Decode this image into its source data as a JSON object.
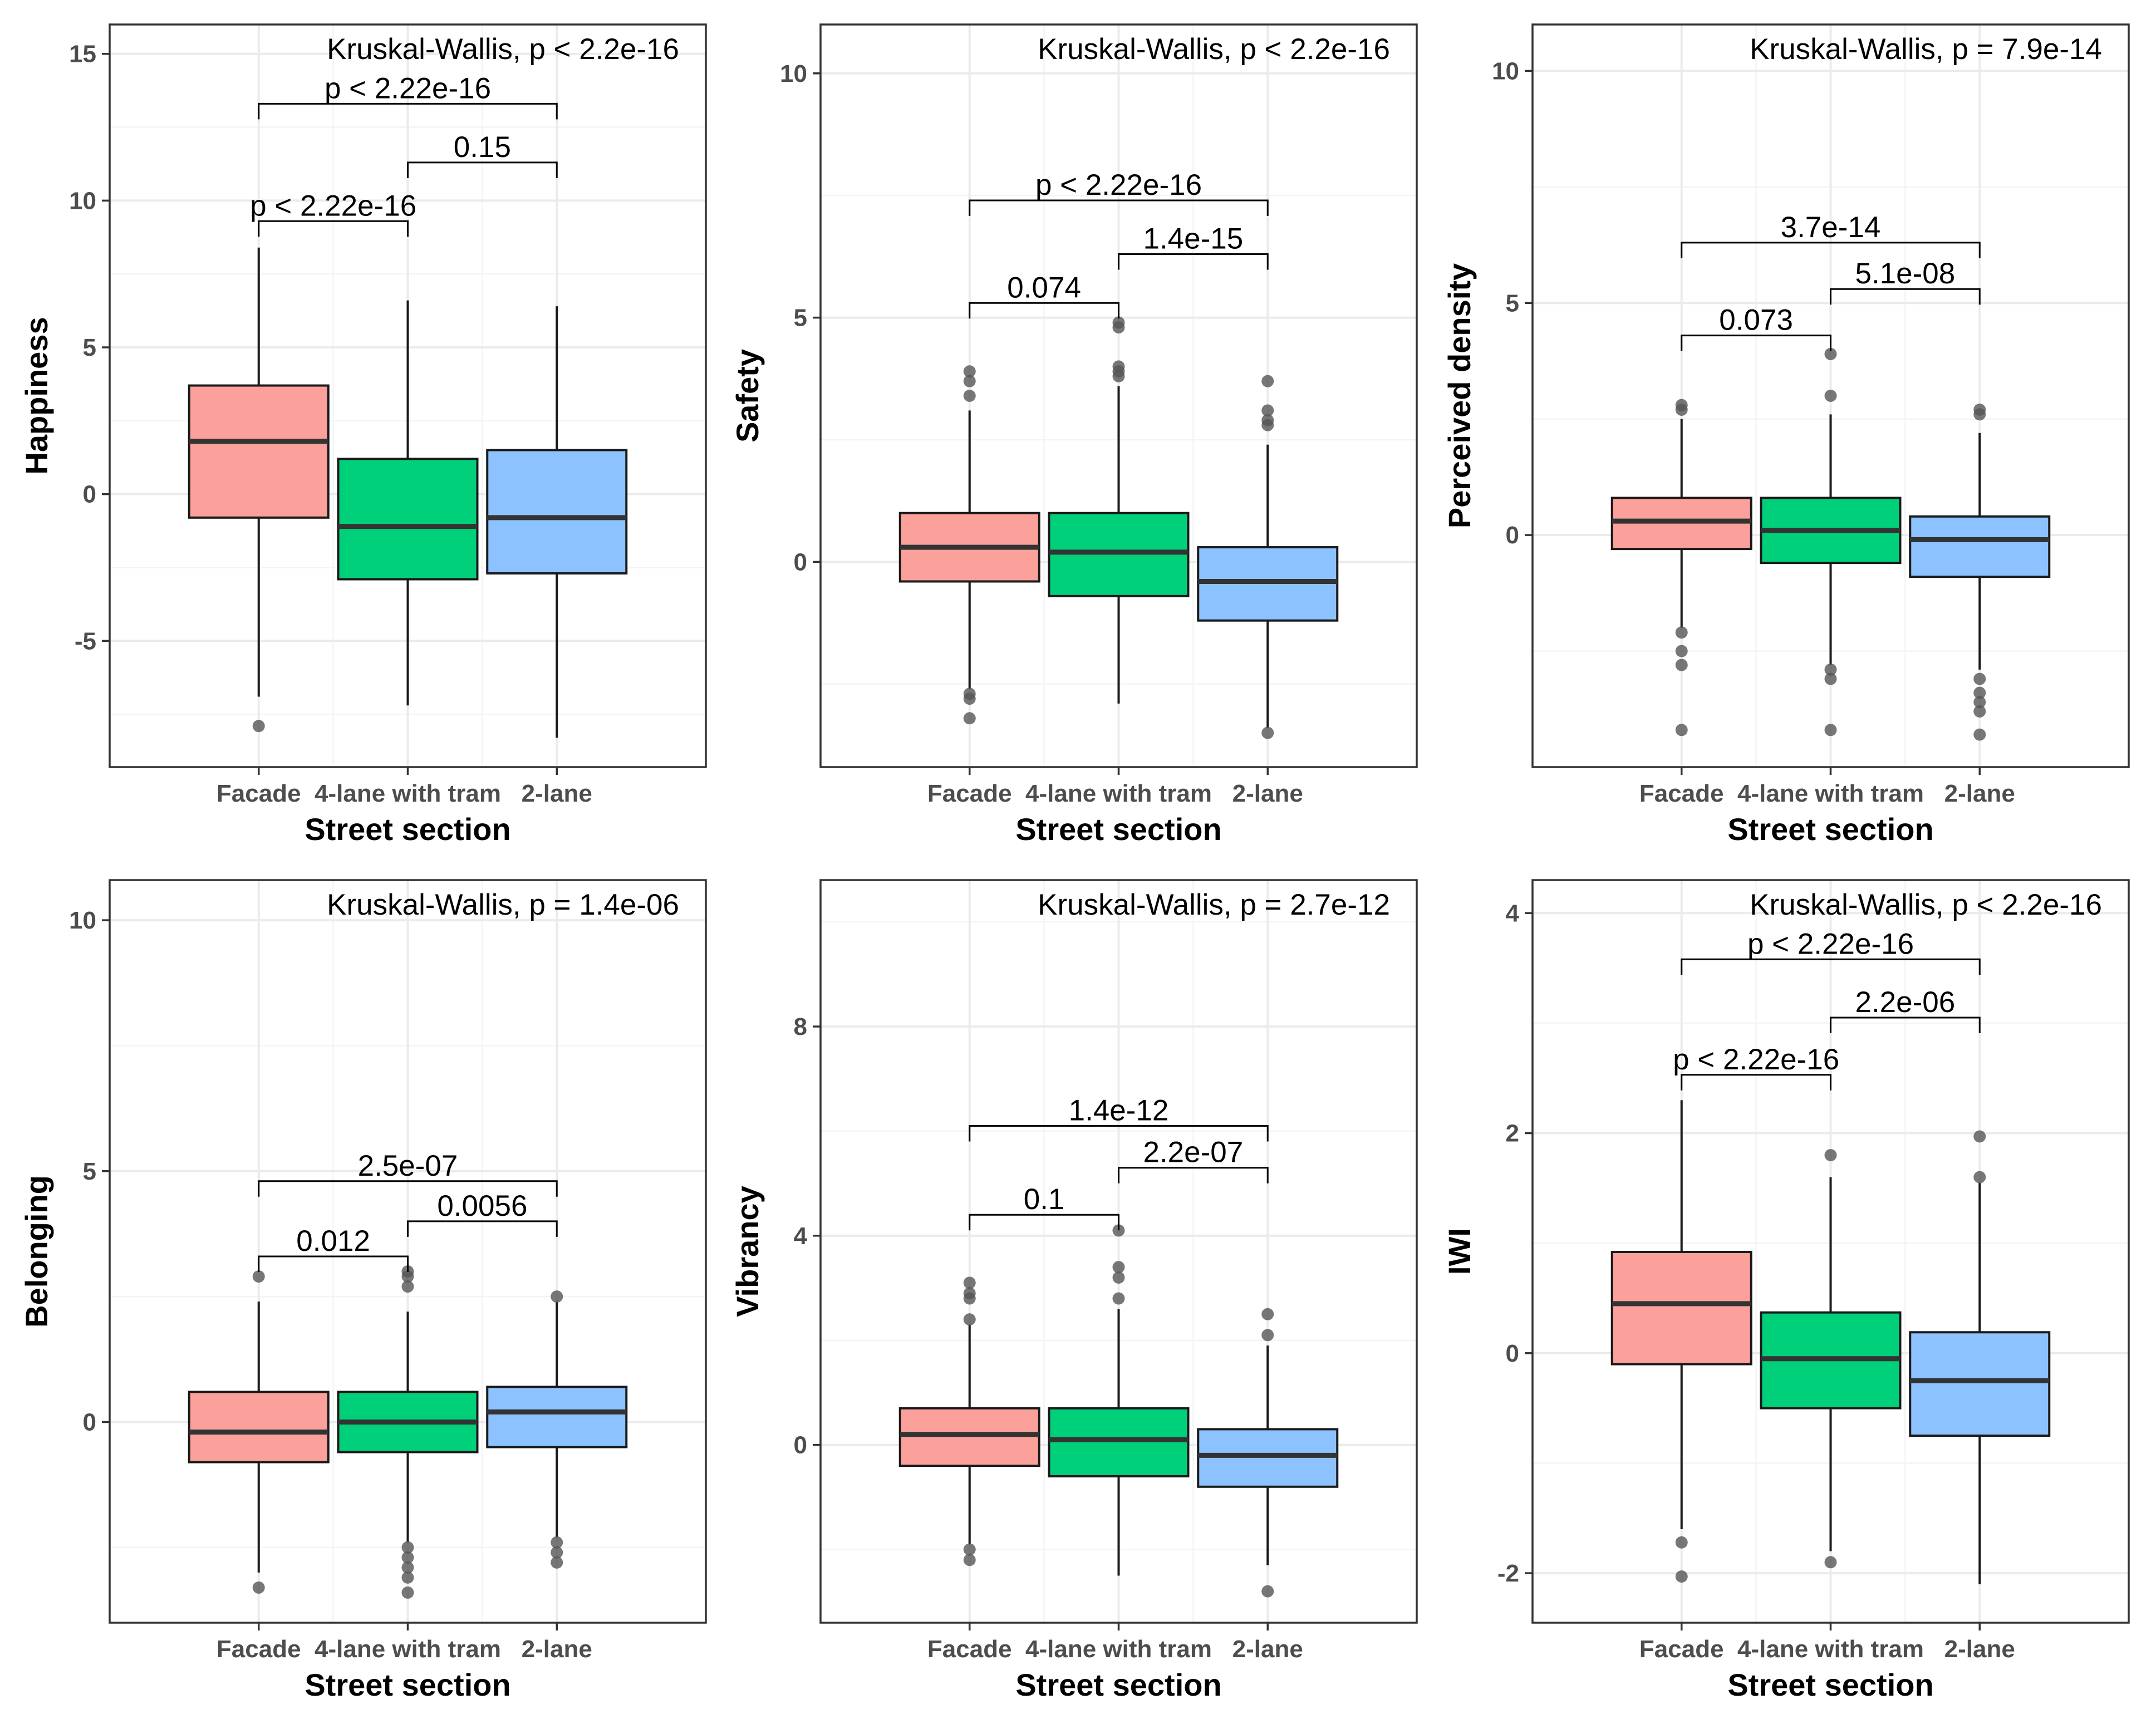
{
  "figure": {
    "groups": [
      "Facade",
      "4-lane with tram",
      "2-lane"
    ],
    "colors": {
      "Facade": "#fba09a",
      "4-lane with tram": "#00d07a",
      "2-lane": "#8cc2ff"
    },
    "xlabel": "Street section"
  },
  "chart_data": [
    {
      "type": "box",
      "ylabel": "Happiness",
      "kruskal_label": "Kruskal-Wallis, p < 2.2e-16",
      "ylim": [
        -9.3,
        16.0
      ],
      "yticks": [
        -5,
        0,
        5,
        10,
        15
      ],
      "ytick_labels": [
        "-5",
        "0",
        "5",
        "10",
        "15"
      ],
      "boxes": [
        {
          "group": "Facade",
          "q1": -0.8,
          "median": 1.8,
          "q3": 3.7,
          "whisker_low": -6.9,
          "whisker_high": 8.4,
          "outliers": [
            -7.9
          ]
        },
        {
          "group": "4-lane with tram",
          "q1": -2.9,
          "median": -1.1,
          "q3": 1.2,
          "whisker_low": -7.2,
          "whisker_high": 6.6,
          "outliers": []
        },
        {
          "group": "2-lane",
          "q1": -2.7,
          "median": -0.8,
          "q3": 1.5,
          "whisker_low": -8.3,
          "whisker_high": 6.4,
          "outliers": []
        }
      ],
      "comparisons": [
        {
          "groups": [
            "Facade",
            "2-lane"
          ],
          "y": 13.3,
          "label": "p < 2.22e-16"
        },
        {
          "groups": [
            "4-lane with tram",
            "2-lane"
          ],
          "y": 11.3,
          "label": "0.15"
        },
        {
          "groups": [
            "Facade",
            "4-lane with tram"
          ],
          "y": 9.3,
          "label": "p < 2.22e-16"
        }
      ]
    },
    {
      "type": "box",
      "ylabel": "Safety",
      "kruskal_label": "Kruskal-Wallis, p < 2.2e-16",
      "ylim": [
        -4.2,
        11.0
      ],
      "yticks": [
        0,
        5,
        10
      ],
      "ytick_labels": [
        "0",
        "5",
        "10"
      ],
      "boxes": [
        {
          "group": "Facade",
          "q1": -0.4,
          "median": 0.3,
          "q3": 1.0,
          "whisker_low": -2.6,
          "whisker_high": 3.1,
          "outliers": [
            -2.7,
            -2.8,
            -3.2,
            3.4,
            3.7,
            3.9
          ]
        },
        {
          "group": "4-lane with tram",
          "q1": -0.7,
          "median": 0.2,
          "q3": 1.0,
          "whisker_low": -2.9,
          "whisker_high": 3.6,
          "outliers": [
            3.8,
            3.9,
            4.0,
            4.8,
            4.9
          ]
        },
        {
          "group": "2-lane",
          "q1": -1.2,
          "median": -0.4,
          "q3": 0.3,
          "whisker_low": -3.4,
          "whisker_high": 2.4,
          "outliers": [
            -3.5,
            2.8,
            2.9,
            3.1,
            3.7
          ]
        }
      ],
      "comparisons": [
        {
          "groups": [
            "Facade",
            "2-lane"
          ],
          "y": 7.4,
          "label": "p < 2.22e-16"
        },
        {
          "groups": [
            "4-lane with tram",
            "2-lane"
          ],
          "y": 6.3,
          "label": "1.4e-15"
        },
        {
          "groups": [
            "Facade",
            "4-lane with tram"
          ],
          "y": 5.3,
          "label": "0.074"
        }
      ]
    },
    {
      "type": "box",
      "ylabel": "Perceived density",
      "kruskal_label": "Kruskal-Wallis, p = 7.9e-14",
      "ylim": [
        -5.0,
        11.0
      ],
      "yticks": [
        0,
        5,
        10
      ],
      "ytick_labels": [
        "0",
        "5",
        "10"
      ],
      "boxes": [
        {
          "group": "Facade",
          "q1": -0.3,
          "median": 0.3,
          "q3": 0.8,
          "whisker_low": -2.0,
          "whisker_high": 2.5,
          "outliers": [
            -2.1,
            -2.5,
            -2.8,
            -4.2,
            2.7,
            2.8
          ]
        },
        {
          "group": "4-lane with tram",
          "q1": -0.6,
          "median": 0.1,
          "q3": 0.8,
          "whisker_low": -2.8,
          "whisker_high": 2.6,
          "outliers": [
            -2.9,
            -3.1,
            -4.2,
            3.0,
            3.9
          ]
        },
        {
          "group": "2-lane",
          "q1": -0.9,
          "median": -0.1,
          "q3": 0.4,
          "whisker_low": -2.9,
          "whisker_high": 2.2,
          "outliers": [
            -3.1,
            -3.4,
            -3.6,
            -3.8,
            -4.3,
            2.6,
            2.7
          ]
        }
      ],
      "comparisons": [
        {
          "groups": [
            "Facade",
            "2-lane"
          ],
          "y": 6.3,
          "label": "3.7e-14"
        },
        {
          "groups": [
            "4-lane with tram",
            "2-lane"
          ],
          "y": 5.3,
          "label": "5.1e-08"
        },
        {
          "groups": [
            "Facade",
            "4-lane with tram"
          ],
          "y": 4.3,
          "label": "0.073"
        }
      ]
    },
    {
      "type": "box",
      "ylabel": "Belonging",
      "kruskal_label": "Kruskal-Wallis, p = 1.4e-06",
      "ylim": [
        -4.0,
        10.8
      ],
      "yticks": [
        0,
        5,
        10
      ],
      "ytick_labels": [
        "0",
        "5",
        "10"
      ],
      "boxes": [
        {
          "group": "Facade",
          "q1": -0.8,
          "median": -0.2,
          "q3": 0.6,
          "whisker_low": -3.0,
          "whisker_high": 2.4,
          "outliers": [
            -3.3,
            2.9
          ]
        },
        {
          "group": "4-lane with tram",
          "q1": -0.6,
          "median": 0.0,
          "q3": 0.6,
          "whisker_low": -2.4,
          "whisker_high": 2.2,
          "outliers": [
            -2.5,
            -2.7,
            -2.9,
            -3.1,
            -3.4,
            2.7,
            2.9,
            3.0
          ]
        },
        {
          "group": "2-lane",
          "q1": -0.5,
          "median": 0.2,
          "q3": 0.7,
          "whisker_low": -2.3,
          "whisker_high": 2.4,
          "outliers": [
            -2.4,
            -2.6,
            -2.8,
            2.5
          ]
        }
      ],
      "comparisons": [
        {
          "groups": [
            "Facade",
            "2-lane"
          ],
          "y": 4.8,
          "label": "2.5e-07"
        },
        {
          "groups": [
            "4-lane with tram",
            "2-lane"
          ],
          "y": 4.0,
          "label": "0.0056"
        },
        {
          "groups": [
            "Facade",
            "4-lane with tram"
          ],
          "y": 3.3,
          "label": "0.012"
        }
      ]
    },
    {
      "type": "box",
      "ylabel": "Vibrancy",
      "kruskal_label": "Kruskal-Wallis, p = 2.7e-12",
      "ylim": [
        -3.4,
        10.8
      ],
      "yticks": [
        0,
        4,
        8
      ],
      "ytick_labels": [
        "0",
        "4",
        "8"
      ],
      "boxes": [
        {
          "group": "Facade",
          "q1": -0.4,
          "median": 0.2,
          "q3": 0.7,
          "whisker_low": -1.9,
          "whisker_high": 2.3,
          "outliers": [
            -2.0,
            -2.2,
            2.4,
            2.8,
            2.9,
            3.1
          ]
        },
        {
          "group": "4-lane with tram",
          "q1": -0.6,
          "median": 0.1,
          "q3": 0.7,
          "whisker_low": -2.5,
          "whisker_high": 2.6,
          "outliers": [
            2.8,
            3.2,
            3.4,
            4.1
          ]
        },
        {
          "group": "2-lane",
          "q1": -0.8,
          "median": -0.2,
          "q3": 0.3,
          "whisker_low": -2.3,
          "whisker_high": 1.9,
          "outliers": [
            -2.8,
            2.1,
            2.5
          ]
        }
      ],
      "comparisons": [
        {
          "groups": [
            "Facade",
            "2-lane"
          ],
          "y": 6.1,
          "label": "1.4e-12"
        },
        {
          "groups": [
            "4-lane with tram",
            "2-lane"
          ],
          "y": 5.3,
          "label": "2.2e-07"
        },
        {
          "groups": [
            "Facade",
            "4-lane with tram"
          ],
          "y": 4.4,
          "label": "0.1"
        }
      ]
    },
    {
      "type": "box",
      "ylabel": "IWI",
      "kruskal_label": "Kruskal-Wallis, p < 2.2e-16",
      "ylim": [
        -2.45,
        4.3
      ],
      "yticks": [
        -2,
        0,
        2,
        4
      ],
      "ytick_labels": [
        "-2",
        "0",
        "2",
        "4"
      ],
      "boxes": [
        {
          "group": "Facade",
          "q1": -0.1,
          "median": 0.45,
          "q3": 0.92,
          "whisker_low": -1.6,
          "whisker_high": 2.3,
          "outliers": [
            -1.72,
            -2.03
          ]
        },
        {
          "group": "4-lane with tram",
          "q1": -0.5,
          "median": -0.05,
          "q3": 0.37,
          "whisker_low": -1.8,
          "whisker_high": 1.6,
          "outliers": [
            -1.9,
            1.8
          ]
        },
        {
          "group": "2-lane",
          "q1": -0.75,
          "median": -0.25,
          "q3": 0.19,
          "whisker_low": -2.1,
          "whisker_high": 1.55,
          "outliers": [
            1.6,
            1.97
          ]
        }
      ],
      "comparisons": [
        {
          "groups": [
            "Facade",
            "2-lane"
          ],
          "y": 3.58,
          "label": "p < 2.22e-16"
        },
        {
          "groups": [
            "4-lane with tram",
            "2-lane"
          ],
          "y": 3.05,
          "label": "2.2e-06"
        },
        {
          "groups": [
            "Facade",
            "4-lane with tram"
          ],
          "y": 2.53,
          "label": "p < 2.22e-16"
        }
      ]
    }
  ]
}
